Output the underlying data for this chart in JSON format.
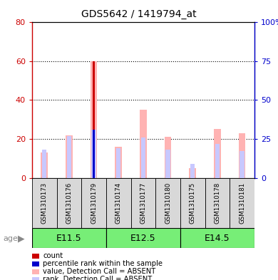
{
  "title": "GDS5642 / 1419794_at",
  "samples": [
    "GSM1310173",
    "GSM1310176",
    "GSM1310179",
    "GSM1310174",
    "GSM1310177",
    "GSM1310180",
    "GSM1310175",
    "GSM1310178",
    "GSM1310181"
  ],
  "groups": [
    {
      "label": "E11.5",
      "indices": [
        0,
        1,
        2
      ]
    },
    {
      "label": "E12.5",
      "indices": [
        3,
        4,
        5
      ]
    },
    {
      "label": "E14.5",
      "indices": [
        6,
        7,
        8
      ]
    }
  ],
  "value_absent": [
    13,
    22,
    60,
    16,
    35,
    21,
    5,
    25,
    23
  ],
  "rank_absent_pct": [
    18,
    27,
    31,
    19,
    26,
    18,
    9,
    22,
    17
  ],
  "count": [
    0,
    0,
    60,
    0,
    0,
    0,
    0,
    0,
    0
  ],
  "percentile_rank_pct": [
    0,
    0,
    31,
    0,
    0,
    0,
    0,
    0,
    0
  ],
  "ylim_left": [
    0,
    80
  ],
  "ylim_right": [
    0,
    100
  ],
  "yticks_left": [
    0,
    20,
    40,
    60,
    80
  ],
  "yticks_left_labels": [
    "0",
    "20",
    "40",
    "60",
    "80"
  ],
  "yticks_right": [
    0,
    25,
    50,
    75,
    100
  ],
  "yticks_right_labels": [
    "0",
    "25",
    "50",
    "75",
    "100%"
  ],
  "color_count": "#cc0000",
  "color_percentile": "#0000cc",
  "color_value_absent": "#ffb3b3",
  "color_rank_absent": "#c8c8ff",
  "color_group_bg": "#77ee77",
  "color_sample_bg": "#d8d8d8",
  "legend_items": [
    {
      "color": "#cc0000",
      "label": "count"
    },
    {
      "color": "#0000cc",
      "label": "percentile rank within the sample"
    },
    {
      "color": "#ffb3b3",
      "label": "value, Detection Call = ABSENT"
    },
    {
      "color": "#c8c8ff",
      "label": "rank, Detection Call = ABSENT"
    }
  ]
}
